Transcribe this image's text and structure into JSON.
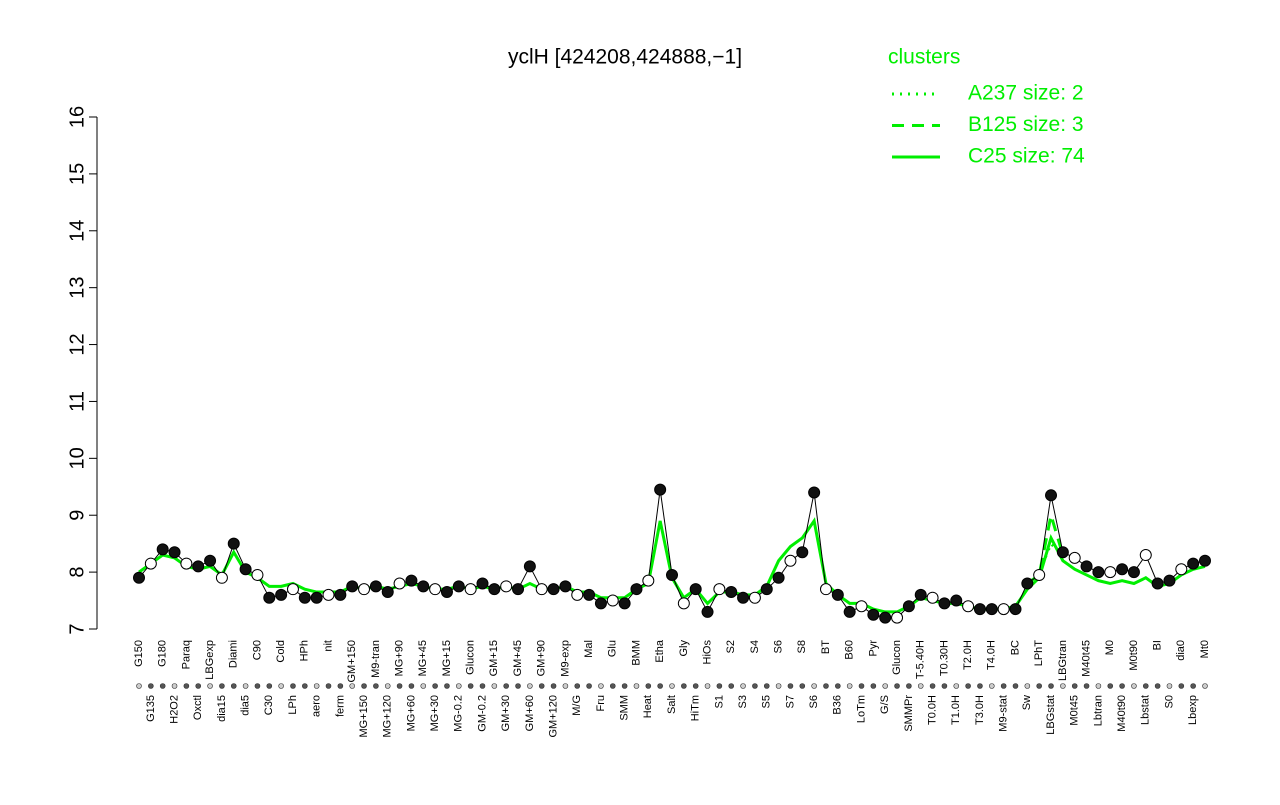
{
  "chart_data": {
    "type": "line",
    "title": "yclH [424208,424888,−1]",
    "legend_title": "clusters",
    "legend_color": "#00ee00",
    "point_color": "#000000",
    "ylim": [
      7,
      16
    ],
    "yticks": [
      7,
      8,
      9,
      10,
      11,
      12,
      13,
      14,
      15,
      16
    ],
    "categories": [
      "G150",
      "G135",
      "G180",
      "H2O2",
      "Paraq",
      "Oxctl",
      "LBGexp",
      "dia15",
      "Diami",
      "dia5",
      "C90",
      "C30",
      "Cold",
      "LPh",
      "HPh",
      "aero",
      "nit",
      "ferm",
      "GM+150",
      "MG+150",
      "M9-tran",
      "MG+120",
      "MG+90",
      "MG+60",
      "MG+45",
      "MG+30",
      "MG+15",
      "MG-0.2",
      "Glucon",
      "GM-0.2",
      "GM+15",
      "GM+30",
      "GM+45",
      "GM+60",
      "GM+90",
      "GM+120",
      "M9-exp",
      "M/G",
      "Mal",
      "Fru",
      "Glu",
      "SMM",
      "BMM",
      "Heat",
      "Etha",
      "Salt",
      "Gly",
      "HiTm",
      "HiOs",
      "S1",
      "S2",
      "S3",
      "S4",
      "S5",
      "S6",
      "S7",
      "S8",
      "S6",
      "BT",
      "B36",
      "B60",
      "LoTm",
      "Pyr",
      "G/S",
      "Glucon",
      "SMMPr",
      "T-5.40H",
      "T0.0H",
      "T0.30H",
      "T1.0H",
      "T2.0H",
      "T3.0H",
      "T4.0H",
      "M9-stat",
      "BC",
      "Sw",
      "LPhT",
      "LBGstat",
      "LBGtran",
      "M0t45",
      "M40t45",
      "Lbtran",
      "M0",
      "M40t90",
      "M0t90",
      "Lbstat",
      "BI",
      "S0",
      "dia0",
      "Lbexp",
      "Mt0"
    ],
    "values": [
      7.9,
      8.15,
      8.4,
      8.35,
      8.15,
      8.1,
      8.2,
      7.9,
      8.5,
      8.05,
      7.95,
      7.55,
      7.6,
      7.7,
      7.55,
      7.55,
      7.6,
      7.6,
      7.75,
      7.7,
      7.75,
      7.65,
      7.8,
      7.85,
      7.75,
      7.7,
      7.65,
      7.75,
      7.7,
      7.8,
      7.7,
      7.75,
      7.7,
      8.1,
      7.7,
      7.7,
      7.75,
      7.6,
      7.6,
      7.45,
      7.5,
      7.45,
      7.7,
      7.85,
      9.45,
      7.95,
      7.45,
      7.7,
      7.3,
      7.7,
      7.65,
      7.55,
      7.55,
      7.7,
      7.9,
      8.2,
      8.35,
      9.4,
      7.7,
      7.6,
      7.3,
      7.4,
      7.25,
      7.2,
      7.2,
      7.4,
      7.6,
      7.55,
      7.45,
      7.5,
      7.4,
      7.35,
      7.35,
      7.35,
      7.35,
      7.8,
      7.95,
      9.35,
      8.35,
      8.25,
      8.1,
      8.0,
      8.0,
      8.05,
      8.0,
      8.3,
      7.8,
      7.85,
      8.05,
      8.15,
      8.2
    ],
    "series": [
      {
        "name": "A237 size: 2",
        "color": "#00ee00",
        "dash": "dotted",
        "values": [
          null,
          null,
          null,
          null,
          null,
          null,
          null,
          null,
          null,
          null,
          null,
          null,
          null,
          null,
          null,
          null,
          null,
          null,
          null,
          null,
          null,
          null,
          null,
          null,
          null,
          null,
          null,
          null,
          null,
          null,
          null,
          null,
          null,
          null,
          null,
          null,
          null,
          null,
          null,
          null,
          null,
          null,
          null,
          null,
          null,
          null,
          null,
          null,
          null,
          null,
          null,
          null,
          null,
          null,
          null,
          null,
          null,
          null,
          null,
          null,
          null,
          null,
          null,
          null,
          null,
          null,
          null,
          null,
          null,
          null,
          null,
          null,
          null,
          null,
          null,
          null,
          8.0,
          8.5,
          8.3,
          null,
          null,
          null,
          null,
          null,
          null,
          null,
          null,
          null,
          null,
          null,
          null
        ]
      },
      {
        "name": "B125 size: 3",
        "color": "#00ee00",
        "dash": "dashed",
        "values": [
          null,
          null,
          null,
          null,
          null,
          null,
          null,
          null,
          null,
          null,
          null,
          null,
          null,
          null,
          null,
          null,
          null,
          null,
          null,
          null,
          null,
          null,
          null,
          null,
          null,
          null,
          null,
          null,
          null,
          null,
          null,
          null,
          null,
          null,
          null,
          null,
          null,
          null,
          null,
          null,
          null,
          null,
          null,
          null,
          null,
          null,
          null,
          null,
          null,
          null,
          null,
          null,
          null,
          null,
          null,
          null,
          null,
          null,
          null,
          null,
          null,
          null,
          null,
          null,
          null,
          null,
          null,
          null,
          null,
          null,
          null,
          null,
          null,
          null,
          null,
          7.8,
          7.95,
          9.0,
          8.3,
          null,
          null,
          null,
          null,
          null,
          null,
          null,
          null,
          null,
          null,
          null,
          null
        ]
      },
      {
        "name": "C25 size: 74",
        "color": "#00ee00",
        "dash": "solid",
        "values": [
          8.0,
          8.15,
          8.3,
          8.25,
          8.1,
          8.05,
          8.1,
          7.95,
          8.35,
          8.0,
          7.9,
          7.75,
          7.75,
          7.8,
          7.7,
          7.65,
          7.65,
          7.65,
          7.75,
          7.7,
          7.75,
          7.7,
          7.75,
          7.8,
          7.75,
          7.7,
          7.7,
          7.75,
          7.7,
          7.75,
          7.7,
          7.75,
          7.7,
          7.8,
          7.7,
          7.7,
          7.75,
          7.65,
          7.65,
          7.55,
          7.55,
          7.55,
          7.7,
          7.8,
          8.9,
          7.9,
          7.55,
          7.7,
          7.45,
          7.65,
          7.65,
          7.6,
          7.6,
          7.75,
          8.2,
          8.45,
          8.6,
          8.9,
          7.8,
          7.6,
          7.45,
          7.45,
          7.35,
          7.3,
          7.3,
          7.4,
          7.55,
          7.5,
          7.45,
          7.45,
          7.4,
          7.35,
          7.35,
          7.35,
          7.4,
          7.7,
          7.9,
          8.6,
          8.2,
          8.05,
          7.95,
          7.85,
          7.8,
          7.85,
          7.8,
          7.9,
          7.75,
          7.8,
          7.95,
          8.05,
          8.1
        ]
      }
    ],
    "grid": false
  }
}
